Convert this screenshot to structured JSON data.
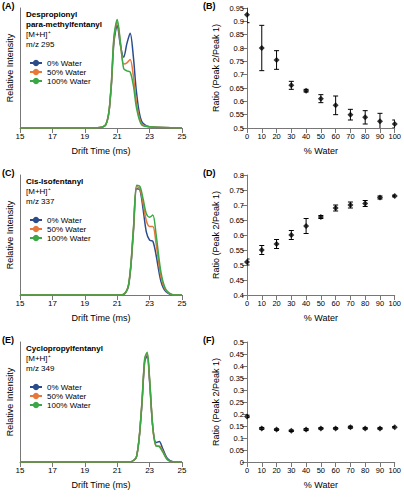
{
  "chart_data": [
    {
      "type": "line",
      "title": "(A)",
      "annotations": [
        "Despropionyl",
        "para-methylfentanyl",
        "[M+H]⁺",
        "m/z 295"
      ],
      "x_label": "Drift Time (ms)",
      "y_label": "Relative Intensity",
      "xlim": [
        15,
        25
      ],
      "xticks": [
        15,
        17,
        19,
        21,
        23,
        25
      ],
      "ylim": [
        0,
        1.05
      ],
      "tick_labels": "x",
      "legend": "upper left",
      "grid": false,
      "x": [
        15,
        19.5,
        20.3,
        20.6,
        20.8,
        21.0,
        21.2,
        21.4,
        21.6,
        21.8,
        22.0,
        22.2,
        22.5,
        23,
        25
      ],
      "series": [
        {
          "name": "0% Water",
          "color": "#2b4c8c",
          "values": [
            0,
            0,
            0.03,
            0.3,
            0.75,
            0.9,
            0.72,
            0.62,
            0.74,
            0.83,
            0.62,
            0.3,
            0.06,
            0.01,
            0
          ]
        },
        {
          "name": "50% Water",
          "color": "#e8773a",
          "values": [
            0,
            0,
            0.03,
            0.31,
            0.78,
            0.93,
            0.74,
            0.56,
            0.57,
            0.6,
            0.45,
            0.21,
            0.04,
            0.01,
            0
          ]
        },
        {
          "name": "100% Water",
          "color": "#3aa845",
          "values": [
            0,
            0,
            0.03,
            0.32,
            0.8,
            0.95,
            0.75,
            0.52,
            0.5,
            0.49,
            0.37,
            0.17,
            0.03,
            0.01,
            0
          ]
        }
      ]
    },
    {
      "type": "scatter",
      "title": "(B)",
      "x_label": "% Water",
      "y_label": "Ratio (Peak 2/Peak 1)",
      "xlim": [
        0,
        100
      ],
      "xticks": [
        0,
        10,
        20,
        30,
        40,
        50,
        60,
        70,
        80,
        90,
        100
      ],
      "ylim": [
        0.5,
        0.95
      ],
      "yticks": [
        0.5,
        0.55,
        0.6,
        0.65,
        0.7,
        0.75,
        0.8,
        0.85,
        0.9,
        0.95
      ],
      "grid": false,
      "color": "#000000",
      "marker": "diamond",
      "x": [
        0,
        10,
        20,
        30,
        40,
        50,
        60,
        70,
        80,
        90,
        100
      ],
      "values": [
        0.925,
        0.8,
        0.755,
        0.66,
        0.64,
        0.61,
        0.585,
        0.55,
        0.54,
        0.525,
        0.515
      ],
      "errors": [
        0.03,
        0.085,
        0.035,
        0.015,
        0.005,
        0.015,
        0.035,
        0.02,
        0.025,
        0.03,
        0.015
      ]
    },
    {
      "type": "line",
      "title": "(C)",
      "annotations": [
        "Cis-Isofentanyl",
        "[M+H]⁺",
        "m/z 337"
      ],
      "x_label": "Drift Time (ms)",
      "y_label": "Relative Intensity",
      "xlim": [
        15,
        25
      ],
      "xticks": [
        15,
        17,
        19,
        21,
        23,
        25
      ],
      "ylim": [
        0,
        1.05
      ],
      "tick_labels": "x",
      "legend": "upper left",
      "grid": false,
      "x": [
        15,
        21.3,
        21.7,
        22.0,
        22.2,
        22.4,
        22.6,
        22.8,
        23.0,
        23.2,
        23.4,
        23.7,
        24.0,
        24.5,
        25
      ],
      "series": [
        {
          "name": "0% Water",
          "color": "#2b4c8c",
          "values": [
            0,
            0,
            0.08,
            0.55,
            0.93,
            0.92,
            0.75,
            0.55,
            0.48,
            0.47,
            0.35,
            0.12,
            0.03,
            0,
            0
          ]
        },
        {
          "name": "50% Water",
          "color": "#e8773a",
          "values": [
            0,
            0,
            0.09,
            0.57,
            0.95,
            0.93,
            0.8,
            0.65,
            0.6,
            0.6,
            0.45,
            0.16,
            0.04,
            0,
            0
          ]
        },
        {
          "name": "100% Water",
          "color": "#3aa845",
          "values": [
            0,
            0,
            0.09,
            0.58,
            0.96,
            0.95,
            0.84,
            0.71,
            0.68,
            0.7,
            0.53,
            0.2,
            0.05,
            0,
            0
          ]
        }
      ]
    },
    {
      "type": "scatter",
      "title": "(D)",
      "x_label": "% Water",
      "y_label": "Ratio (Peak 2/Peak 1)",
      "xlim": [
        0,
        100
      ],
      "xticks": [
        0,
        10,
        20,
        30,
        40,
        50,
        60,
        70,
        80,
        90,
        100
      ],
      "ylim": [
        0.4,
        0.8
      ],
      "yticks": [
        0.4,
        0.45,
        0.5,
        0.55,
        0.6,
        0.65,
        0.7,
        0.75,
        0.8
      ],
      "grid": false,
      "color": "#000000",
      "marker": "diamond",
      "x": [
        0,
        10,
        20,
        30,
        40,
        50,
        60,
        70,
        80,
        90,
        100
      ],
      "values": [
        0.51,
        0.55,
        0.57,
        0.6,
        0.63,
        0.66,
        0.69,
        0.7,
        0.705,
        0.725,
        0.73
      ],
      "errors": [
        0.01,
        0.015,
        0.015,
        0.015,
        0.025,
        0.005,
        0.01,
        0.01,
        0.01,
        0.005,
        0.003
      ]
    },
    {
      "type": "line",
      "title": "(E)",
      "annotations": [
        "Cyclopropylfentanyl",
        "[M+H]⁺",
        "m/z 349"
      ],
      "x_label": "Drift Time (ms)",
      "y_label": "Relative Intensity",
      "xlim": [
        15,
        25
      ],
      "xticks": [
        15,
        17,
        19,
        21,
        23,
        25
      ],
      "ylim": [
        0,
        1.05
      ],
      "tick_labels": "x",
      "legend": "upper left",
      "grid": false,
      "x": [
        15,
        21.8,
        22.2,
        22.5,
        22.7,
        22.85,
        23.0,
        23.2,
        23.4,
        23.6,
        23.8,
        24.1,
        24.5,
        25
      ],
      "series": [
        {
          "name": "0% Water",
          "color": "#2b4c8c",
          "values": [
            0,
            0,
            0.05,
            0.45,
            0.88,
            0.93,
            0.7,
            0.3,
            0.17,
            0.18,
            0.12,
            0.03,
            0,
            0
          ]
        },
        {
          "name": "50% Water",
          "color": "#e8773a",
          "values": [
            0,
            0,
            0.05,
            0.47,
            0.9,
            0.95,
            0.72,
            0.3,
            0.14,
            0.14,
            0.1,
            0.02,
            0,
            0
          ]
        },
        {
          "name": "100% Water",
          "color": "#3aa845",
          "values": [
            0,
            0,
            0.05,
            0.47,
            0.91,
            0.96,
            0.73,
            0.3,
            0.14,
            0.135,
            0.09,
            0.02,
            0,
            0
          ]
        }
      ]
    },
    {
      "type": "scatter",
      "title": "(F)",
      "x_label": "% Water",
      "y_label": "Ratio (Peak 2/Peak 1)",
      "xlim": [
        0,
        100
      ],
      "xticks": [
        0,
        10,
        20,
        30,
        40,
        50,
        60,
        70,
        80,
        90,
        100
      ],
      "ylim": [
        0,
        0.5
      ],
      "yticks": [
        0,
        0.05,
        0.1,
        0.15,
        0.2,
        0.25,
        0.3,
        0.35,
        0.4,
        0.45,
        0.5
      ],
      "grid": false,
      "color": "#000000",
      "marker": "diamond",
      "x": [
        0,
        10,
        20,
        30,
        40,
        50,
        60,
        70,
        80,
        90,
        100
      ],
      "values": [
        0.19,
        0.14,
        0.135,
        0.13,
        0.135,
        0.14,
        0.14,
        0.145,
        0.14,
        0.14,
        0.145
      ],
      "errors": [
        0.005,
        0.004,
        0.003,
        0.003,
        0.004,
        0.003,
        0.003,
        0.004,
        0.003,
        0.003,
        0.003
      ]
    }
  ]
}
